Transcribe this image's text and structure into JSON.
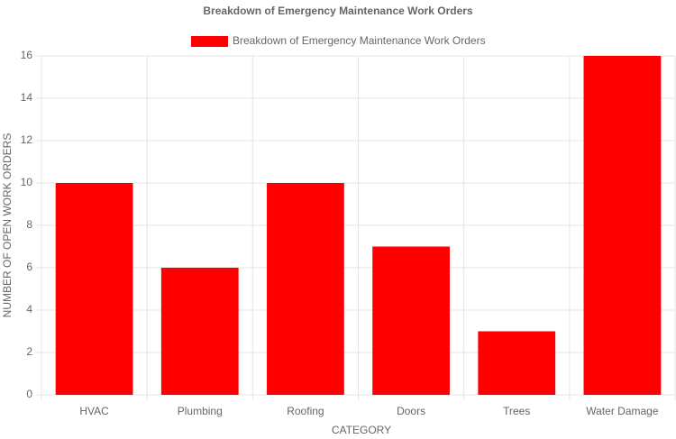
{
  "chart_data": {
    "type": "bar",
    "title": "Breakdown of Emergency Maintenance Work Orders",
    "x_label": "CATEGORY",
    "y_label": "NUMBER OF OPEN WORK ORDERS",
    "categories": [
      "HVAC",
      "Plumbing",
      "Roofing",
      "Doors",
      "Trees",
      "Water Damage"
    ],
    "series": [
      {
        "name": "Breakdown of Emergency Maintenance Work Orders",
        "color": "#ff0000",
        "values": [
          10,
          6,
          10,
          7,
          3,
          16
        ]
      }
    ],
    "ylim": [
      0,
      16
    ],
    "yticks": [
      0,
      2,
      4,
      6,
      8,
      10,
      12,
      14,
      16
    ],
    "grid": true,
    "legend": "top"
  }
}
